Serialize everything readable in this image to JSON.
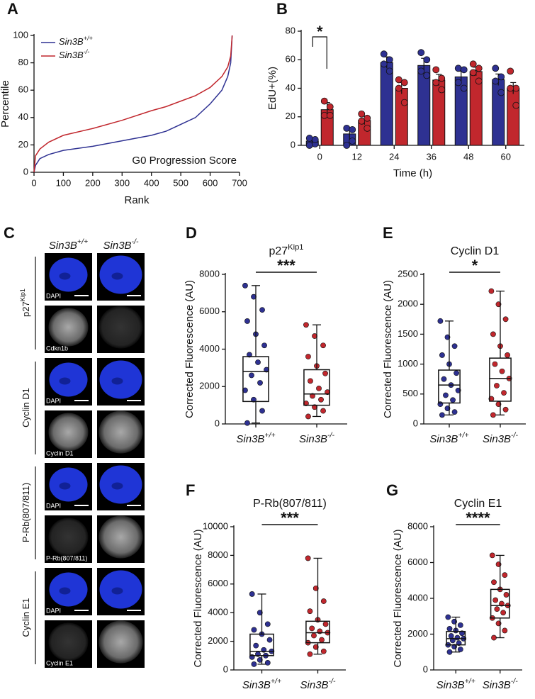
{
  "chart_data": [
    {
      "panel": "A",
      "type": "line",
      "xlabel": "Rank",
      "ylabel": "Percentile",
      "annotation": "G0 Progression Score",
      "x": [
        0,
        5,
        20,
        50,
        100,
        200,
        300,
        400,
        450,
        500,
        550,
        600,
        640,
        660,
        670,
        675
      ],
      "series": [
        {
          "name": {
            "text": "Sin3B",
            "sup": "+/+"
          },
          "color": "#2e3192",
          "values": [
            0,
            5,
            10,
            13,
            16,
            19,
            23,
            27,
            30,
            35,
            40,
            50,
            60,
            70,
            80,
            100
          ]
        },
        {
          "name": {
            "text": "Sin3B",
            "sup": "-/-"
          },
          "color": "#c1272d",
          "values": [
            0,
            12,
            17,
            22,
            27,
            32,
            38,
            45,
            48,
            52,
            56,
            62,
            70,
            77,
            85,
            100
          ]
        }
      ],
      "xlim": [
        0,
        700
      ],
      "xticks": [
        0,
        100,
        200,
        300,
        400,
        500,
        600,
        700
      ],
      "ylim": [
        0,
        100
      ],
      "yticks": [
        0,
        20,
        40,
        60,
        80,
        100
      ]
    },
    {
      "panel": "B",
      "type": "bar",
      "xlabel": "Time (h)",
      "ylabel": "EdU+(%)",
      "annotation": "*",
      "categories": [
        "0",
        "12",
        "24",
        "36",
        "48",
        "60"
      ],
      "series": [
        {
          "color": "#2e3192",
          "values": [
            3,
            8,
            58,
            56,
            48,
            46
          ],
          "errors": [
            2,
            4,
            4,
            5,
            4,
            4
          ],
          "points": [
            [
              5,
              1,
              0,
              4
            ],
            [
              12,
              3,
              0,
              11
            ],
            [
              64,
              60,
              57,
              52
            ],
            [
              65,
              60,
              52,
              49
            ],
            [
              54,
              53,
              44,
              40
            ],
            [
              54,
              48,
              45,
              37
            ]
          ]
        },
        {
          "color": "#c1272d",
          "values": [
            25,
            17.5,
            40,
            45.75,
            51.75,
            40
          ],
          "errors": [
            5,
            3,
            4,
            4,
            3,
            4
          ],
          "points": [
            [
              31,
              27,
              21,
              21
            ],
            [
              22,
              19,
              17,
              12
            ],
            [
              46,
              44,
              40,
              30
            ],
            [
              53,
              47,
              44,
              39
            ],
            [
              57,
              54,
              51,
              45
            ],
            [
              52,
              40,
              40,
              28
            ]
          ]
        }
      ],
      "ylim": [
        0,
        80
      ],
      "yticks": [
        0,
        20,
        40,
        60,
        80
      ]
    },
    {
      "panel": "D",
      "type": "box",
      "title": {
        "text": "p27",
        "sup": "Kip1"
      },
      "ylabel": "Corrected Fluorescence (AU)",
      "annotation": "***",
      "categories": [
        {
          "text": "Sin3B",
          "sup": "+/+"
        },
        {
          "text": "Sin3B",
          "sup": "-/-"
        }
      ],
      "groups": [
        {
          "color": "#2e3192",
          "min": 50,
          "q1": 1200,
          "median": 2800,
          "q3": 3600,
          "max": 7400,
          "points": [
            7400,
            6800,
            6100,
            5500,
            4800,
            4200,
            3700,
            3300,
            2900,
            2600,
            2200,
            1800,
            1300,
            700,
            50
          ]
        },
        {
          "color": "#c1272d",
          "min": 400,
          "q1": 1000,
          "median": 1600,
          "q3": 2900,
          "max": 5300,
          "points": [
            5300,
            4700,
            4200,
            3600,
            3100,
            2700,
            2300,
            1900,
            1700,
            1500,
            1300,
            1100,
            900,
            700,
            400
          ]
        }
      ],
      "ylim": [
        0,
        8000
      ],
      "yticks": [
        0,
        2000,
        4000,
        6000,
        8000
      ]
    },
    {
      "panel": "E",
      "type": "box",
      "title": {
        "text": "Cyclin D1"
      },
      "ylabel": "Corrected Fluorescence (AU)",
      "annotation": "*",
      "categories": [
        {
          "text": "Sin3B",
          "sup": "+/+"
        },
        {
          "text": "Sin3B",
          "sup": "-/-"
        }
      ],
      "groups": [
        {
          "color": "#2e3192",
          "min": 150,
          "q1": 350,
          "median": 650,
          "q3": 900,
          "max": 1720,
          "points": [
            1720,
            1450,
            1300,
            1150,
            1000,
            850,
            750,
            650,
            560,
            480,
            400,
            330,
            260,
            200,
            150
          ]
        },
        {
          "color": "#c1272d",
          "min": 150,
          "q1": 380,
          "median": 760,
          "q3": 1100,
          "max": 2220,
          "points": [
            2220,
            2000,
            1750,
            1500,
            1300,
            1150,
            1000,
            880,
            760,
            640,
            520,
            420,
            330,
            240,
            150
          ]
        }
      ],
      "ylim": [
        0,
        2500
      ],
      "yticks": [
        0,
        500,
        1000,
        1500,
        2000,
        2500
      ]
    },
    {
      "panel": "F",
      "type": "box",
      "title": {
        "text": "P-Rb(807/811)"
      },
      "ylabel": "Corrected Fluorescence (AU)",
      "annotation": "***",
      "categories": [
        {
          "text": "Sin3B",
          "sup": "+/+"
        },
        {
          "text": "Sin3B",
          "sup": "-/-"
        }
      ],
      "groups": [
        {
          "color": "#2e3192",
          "min": 400,
          "q1": 1000,
          "median": 1300,
          "q3": 2500,
          "max": 5300,
          "points": [
            5300,
            4000,
            3200,
            2800,
            2500,
            2100,
            1700,
            1400,
            1300,
            1100,
            1000,
            900,
            700,
            500,
            400
          ]
        },
        {
          "color": "#c1272d",
          "min": 1100,
          "q1": 1900,
          "median": 2600,
          "q3": 3400,
          "max": 7800,
          "points": [
            7800,
            5700,
            4800,
            4100,
            3500,
            3200,
            2900,
            2700,
            2600,
            2400,
            2100,
            1900,
            1600,
            1300,
            1100
          ]
        }
      ],
      "ylim": [
        0,
        10000
      ],
      "yticks": [
        0,
        2000,
        4000,
        6000,
        8000,
        10000
      ]
    },
    {
      "panel": "G",
      "type": "box",
      "title": {
        "text": "Cyclin E1"
      },
      "ylabel": "Corrected Fluorescence (AU)",
      "annotation": "****",
      "categories": [
        {
          "text": "Sin3B",
          "sup": "+/+"
        },
        {
          "text": "Sin3B",
          "sup": "-/-"
        }
      ],
      "groups": [
        {
          "color": "#2e3192",
          "min": 1000,
          "q1": 1400,
          "median": 1750,
          "q3": 2150,
          "max": 2950,
          "points": [
            2950,
            2700,
            2500,
            2300,
            2200,
            2050,
            1900,
            1800,
            1750,
            1650,
            1500,
            1400,
            1300,
            1150,
            1000
          ]
        },
        {
          "color": "#c1272d",
          "min": 1800,
          "q1": 2900,
          "median": 3600,
          "q3": 4500,
          "max": 6400,
          "points": [
            6400,
            5900,
            5300,
            4900,
            4500,
            4200,
            3900,
            3700,
            3600,
            3400,
            3200,
            2900,
            2600,
            2200,
            1800
          ]
        }
      ],
      "ylim": [
        0,
        8000
      ],
      "yticks": [
        0,
        2000,
        4000,
        6000,
        8000
      ]
    }
  ],
  "panel_c": {
    "panel": "C",
    "columns": [
      {
        "text": "Sin3B",
        "sup": "+/+"
      },
      {
        "text": "Sin3B",
        "sup": "-/-"
      }
    ],
    "groups": [
      {
        "label": {
          "text": "p27",
          "sup": "Kip1"
        },
        "rows": [
          "DAPI",
          "Cdkn1b"
        ]
      },
      {
        "label": {
          "text": "Cyclin D1"
        },
        "rows": [
          "DAPI",
          "Cyclin D1"
        ]
      },
      {
        "label": {
          "text": "P-Rb(807/811)"
        },
        "rows": [
          "DAPI",
          "P-Rb(807/811)"
        ]
      },
      {
        "label": {
          "text": "Cyclin E1"
        },
        "rows": [
          "DAPI",
          "Cyclin E1"
        ]
      }
    ]
  }
}
